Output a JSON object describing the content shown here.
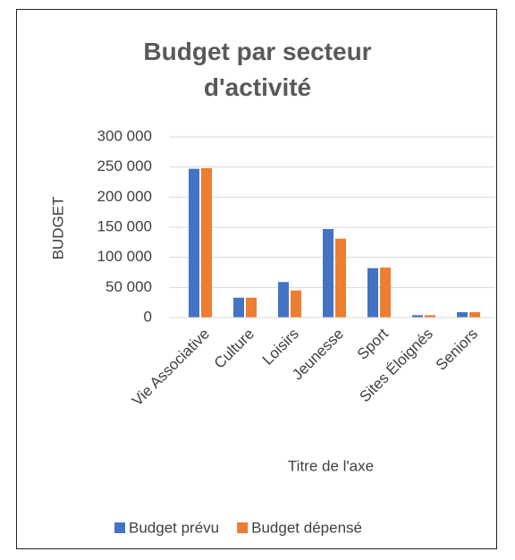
{
  "chart_data": {
    "type": "bar",
    "title": "Budget par secteur d'activité",
    "y_axis_label": "BUDGET",
    "x_axis_label": "Titre de l'axe",
    "categories": [
      "Vie Associative",
      "Culture",
      "Loisirs",
      "Jeunesse",
      "Sport",
      "Sites Éloignés",
      "Seniors"
    ],
    "series": [
      {
        "name": "Budget prévu",
        "color": "#4472c4",
        "values": [
          247000,
          33000,
          59000,
          147000,
          82000,
          4000,
          9000
        ]
      },
      {
        "name": "Budget dépensé",
        "color": "#ed7d31",
        "values": [
          248000,
          33000,
          45000,
          131000,
          83000,
          4000,
          9000
        ]
      }
    ],
    "ylim": [
      0,
      300000
    ],
    "yticks": [
      0,
      {
        "value": 50000,
        "label": "50 000"
      },
      {
        "value": 100000,
        "label": "100 000"
      },
      {
        "value": 150000,
        "label": "150 000"
      },
      {
        "value": 200000,
        "label": "200 000"
      },
      {
        "value": 250000,
        "label": "250 000"
      },
      {
        "value": 300000,
        "label": "300 000"
      }
    ],
    "grid": true,
    "legend": "bottom"
  }
}
